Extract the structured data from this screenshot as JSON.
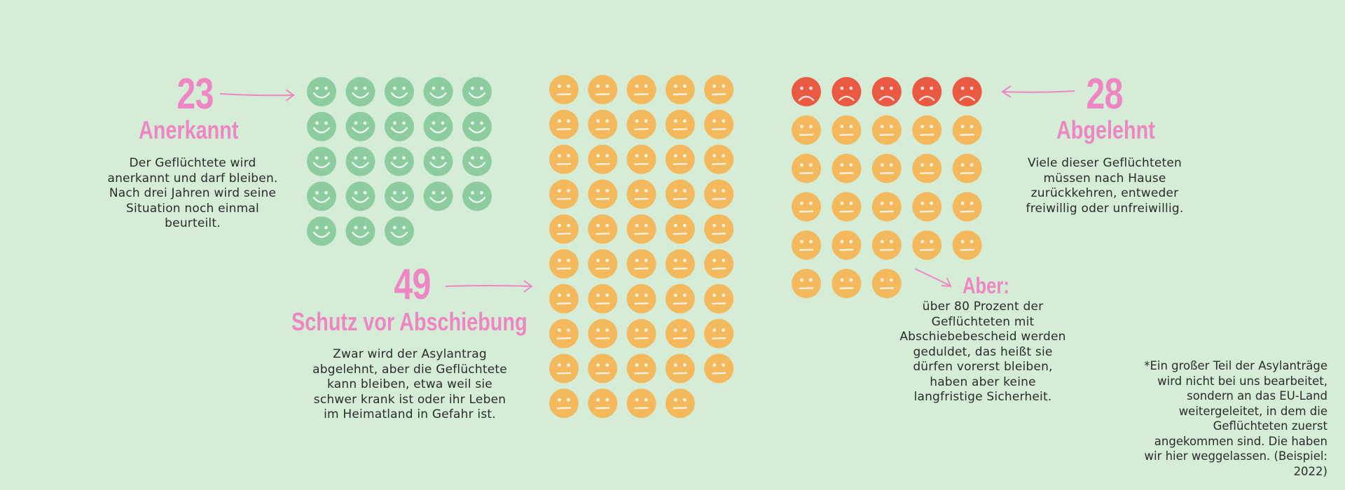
{
  "groups": {
    "anerkannt": {
      "count": "23",
      "title": "Anerkannt",
      "description": "Der Geflüchtete wird anerkannt und darf bleiben. Nach drei Jahren wird seine Situation noch einmal beurteilt.",
      "icon": "smiley-happy-icon",
      "color": "#8ccc9f",
      "value": 23
    },
    "schutz": {
      "count": "49",
      "title": "Schutz vor Abschiebung",
      "description": "Zwar wird der Asylantrag abgelehnt, aber die Geflüchtete kann bleiben, etwa weil sie schwer krank ist oder ihr Leben im Heimatland in Gefahr ist.",
      "icon": "smiley-neutral-icon",
      "color": "#f3b95c",
      "value": 49
    },
    "abgelehnt": {
      "count": "28",
      "title": "Abgelehnt",
      "description": "Viele dieser Geflüchteten müssen nach Hause zurückkehren, entweder freiwillig oder unfreiwillig.",
      "icon": "smiley-sad-icon",
      "color": "#ea5a43",
      "value": 28,
      "tolerated_value": 23
    }
  },
  "aber": {
    "title": "Aber:",
    "text": "über 80 Prozent der Geflüchteten mit Abschiebebescheid werden geduldet, das heißt sie dürfen vorerst bleiben, haben aber keine langfristige Sicherheit."
  },
  "footnote": "*Ein großer Teil der Asylanträge wird nicht bei uns bearbeitet, sondern an das EU-Land weitergeleitet, in dem die Geflüchteten zuerst angekommen sind. Die haben wir hier weggelassen. (Beispiel: 2022)",
  "colors": {
    "background": "#d5edd7",
    "accent": "#ee86c3",
    "happy": "#8ccc9f",
    "neutral": "#f3b95c",
    "sad": "#ea5a43"
  }
}
